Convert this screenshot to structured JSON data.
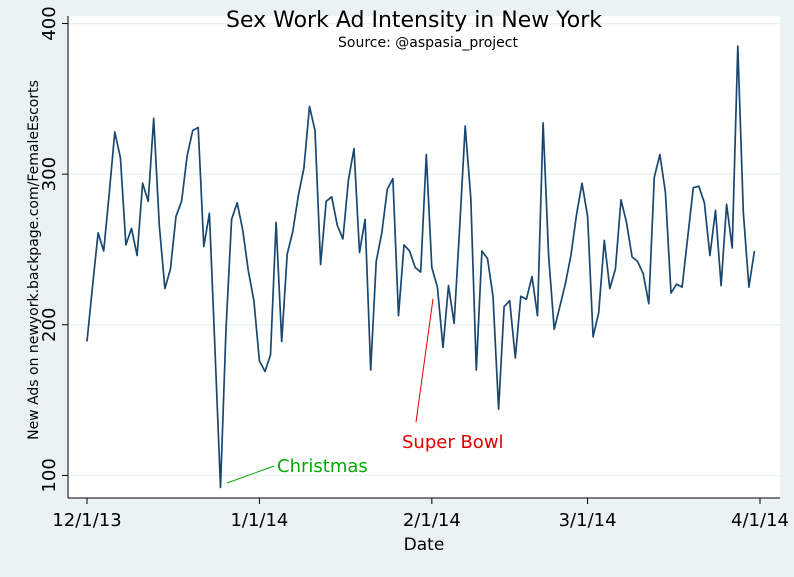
{
  "chart_data": {
    "type": "line",
    "title": "Sex Work Ad Intensity in New York",
    "subtitle": "Source: @aspasia_project",
    "xlabel": "Date",
    "ylabel": "New Ads on newyork.backpage.com/FemaleEscorts",
    "ylim": [
      85,
      405
    ],
    "xlim": [
      0,
      121
    ],
    "grid": true,
    "x_ticks": [
      {
        "label": "12/1/13",
        "value": 0
      },
      {
        "label": "1/1/14",
        "value": 31
      },
      {
        "label": "2/1/14",
        "value": 62
      },
      {
        "label": "3/1/14",
        "value": 90
      },
      {
        "label": "4/1/14",
        "value": 121
      }
    ],
    "y_ticks": [
      100,
      200,
      300,
      400
    ],
    "series": [
      {
        "name": "New Ads",
        "color": "#1a476f",
        "x_unit": "days since 12/1/13",
        "values": [
          189,
          226,
          261,
          249,
          287,
          328,
          311,
          253,
          264,
          246,
          294,
          282,
          337,
          266,
          224,
          237,
          272,
          282,
          312,
          329,
          331,
          252,
          274,
          185,
          92,
          197,
          270,
          281,
          263,
          236,
          216,
          176,
          169,
          180,
          268,
          189,
          247,
          262,
          286,
          304,
          345,
          329,
          240,
          282,
          285,
          266,
          257,
          296,
          317,
          248,
          270,
          170,
          242,
          261,
          290,
          297,
          206,
          253,
          249,
          238,
          235,
          313,
          238,
          225,
          185,
          226,
          201,
          265,
          332,
          284,
          170,
          249,
          244,
          219,
          144,
          212,
          216,
          178,
          219,
          217,
          232,
          206,
          334,
          246,
          197,
          212,
          227,
          246,
          273,
          294,
          272,
          192,
          208,
          256,
          224,
          237,
          283,
          268,
          245,
          242,
          234,
          214,
          298,
          313,
          288,
          221,
          227,
          225,
          258,
          291,
          292,
          281,
          246,
          276,
          226,
          280,
          251,
          385,
          275,
          225,
          249
        ]
      }
    ],
    "annotations": [
      {
        "text": "Christmas",
        "color": "#00aa00",
        "x": 24,
        "y": 92
      },
      {
        "text": "Super Bowl",
        "color": "#dd0000",
        "x": 63,
        "y": 219
      }
    ]
  }
}
